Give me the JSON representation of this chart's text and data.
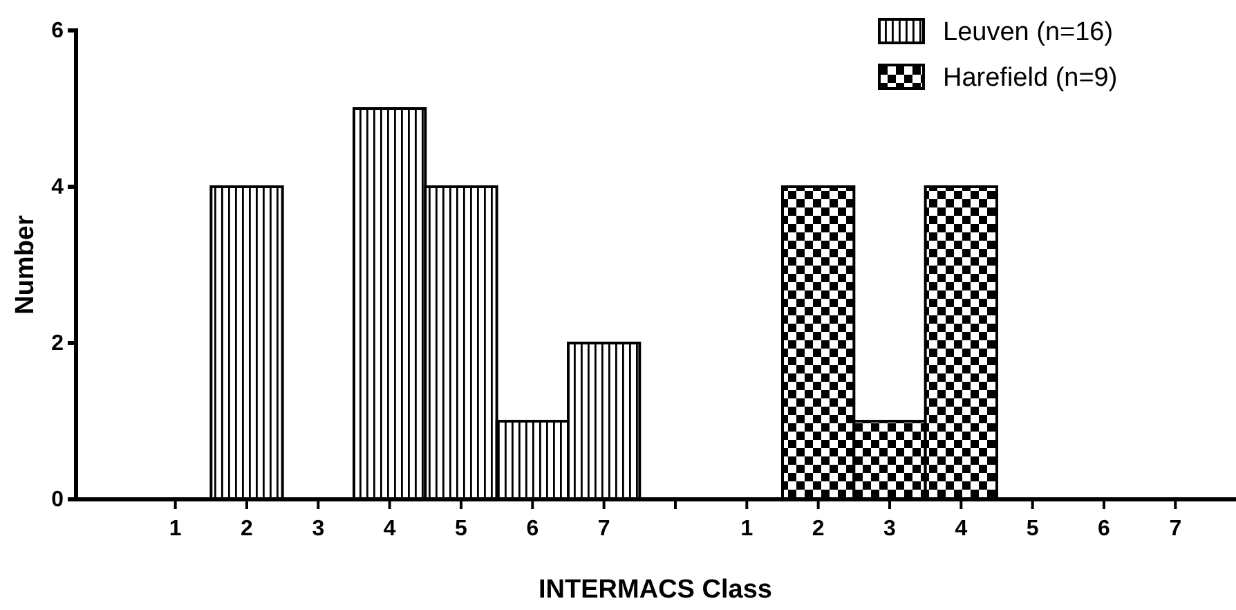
{
  "chart_data": {
    "type": "bar",
    "xlabel": "INTERMACS Class",
    "ylabel": "Number",
    "categories": [
      "1",
      "2",
      "3",
      "4",
      "5",
      "6",
      "7",
      null,
      "1",
      "2",
      "3",
      "4",
      "5",
      "6",
      "7"
    ],
    "series": [
      {
        "name": "Leuven (n=16)",
        "color": "#000000",
        "values": [
          0,
          4,
          0,
          5,
          4,
          1,
          2,
          null,
          null,
          null,
          null,
          null,
          null,
          null,
          null
        ]
      },
      {
        "name": "Harefield (n=9)",
        "color": "#000000",
        "values": [
          null,
          null,
          null,
          null,
          null,
          null,
          null,
          null,
          0,
          4,
          1,
          4,
          0,
          0,
          0
        ]
      }
    ],
    "ylim": [
      0,
      6
    ],
    "yticks": [
      0,
      2,
      4,
      6
    ],
    "grid": false,
    "legend": "top right"
  }
}
